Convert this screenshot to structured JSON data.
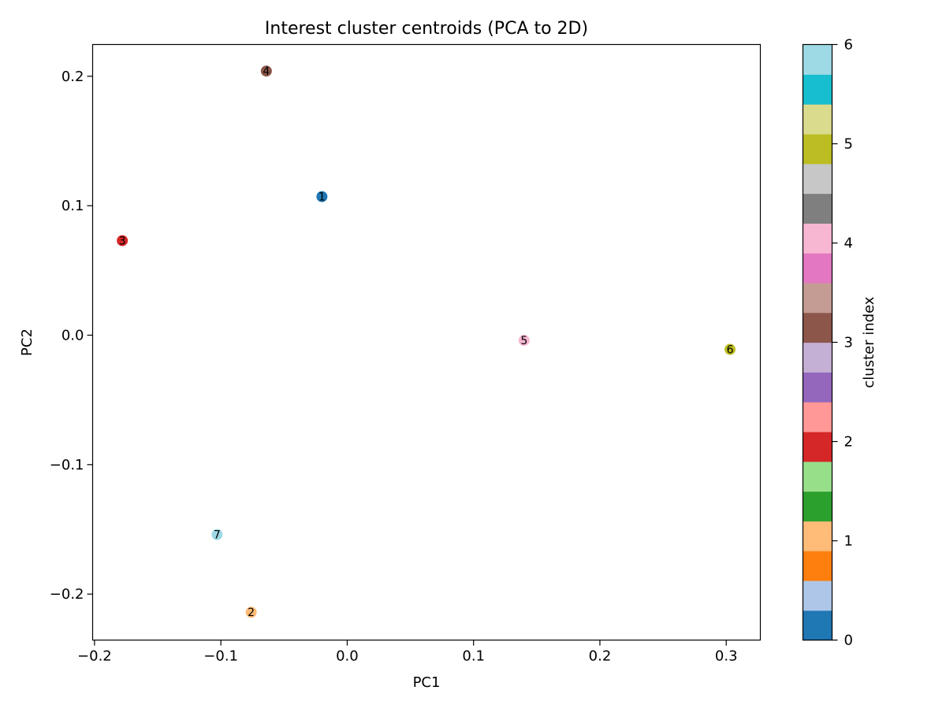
{
  "chart_data": {
    "type": "scatter",
    "title": "Interest cluster centroids (PCA to 2D)",
    "xlabel": "PC1",
    "ylabel": "PC2",
    "xlim": [
      -0.2015,
      0.327
    ],
    "ylim": [
      -0.2355,
      0.2245
    ],
    "xticks": [
      -0.2,
      -0.1,
      0.0,
      0.1,
      0.2,
      0.3
    ],
    "xtick_labels": [
      "−0.2",
      "−0.1",
      "0.0",
      "0.1",
      "0.2",
      "0.3"
    ],
    "yticks": [
      -0.2,
      -0.1,
      0.0,
      0.1,
      0.2
    ],
    "ytick_labels": [
      "−0.2",
      "−0.1",
      "0.0",
      "0.1",
      "0.2"
    ],
    "grid": false,
    "points": [
      {
        "label": "1",
        "x": -0.02,
        "y": 0.107,
        "color": "#1f77b4"
      },
      {
        "label": "2",
        "x": -0.076,
        "y": -0.214,
        "color": "#ffbb78"
      },
      {
        "label": "3",
        "x": -0.178,
        "y": 0.073,
        "color": "#d62728"
      },
      {
        "label": "4",
        "x": -0.064,
        "y": 0.204,
        "color": "#8c564b"
      },
      {
        "label": "5",
        "x": 0.14,
        "y": -0.004,
        "color": "#f7b6d2"
      },
      {
        "label": "6",
        "x": 0.303,
        "y": -0.011,
        "color": "#bcbd22"
      },
      {
        "label": "7",
        "x": -0.103,
        "y": -0.154,
        "color": "#9edae5"
      }
    ],
    "colorbar": {
      "label": "cluster index",
      "range": [
        0,
        6
      ],
      "ticks": [
        0,
        1,
        2,
        3,
        4,
        5,
        6
      ],
      "tick_labels": [
        "0",
        "1",
        "2",
        "3",
        "4",
        "5",
        "6"
      ],
      "colors": [
        "#1f77b4",
        "#aec7e8",
        "#ff7f0e",
        "#ffbb78",
        "#2ca02c",
        "#98df8a",
        "#d62728",
        "#ff9896",
        "#9467bd",
        "#c5b0d5",
        "#8c564b",
        "#c49c94",
        "#e377c2",
        "#f7b6d2",
        "#7f7f7f",
        "#c7c7c7",
        "#bcbd22",
        "#dbdb8d",
        "#17becf",
        "#9edae5"
      ]
    }
  }
}
